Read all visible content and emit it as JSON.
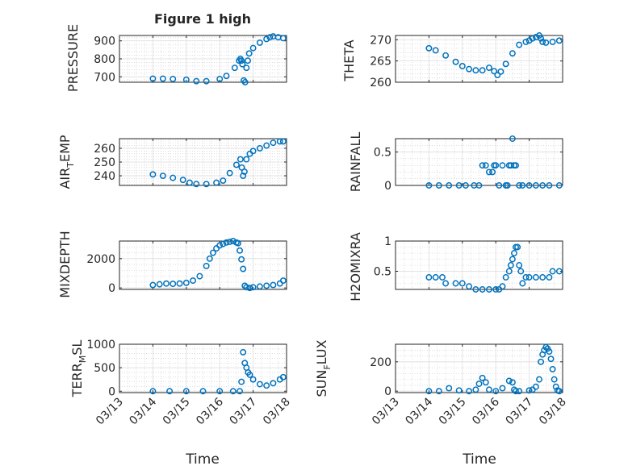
{
  "chart_data": [
    {
      "type": "scatter",
      "title": "Figure 1 high",
      "ylabel": "PRESSURE",
      "ylim": [
        670,
        930
      ],
      "yticks": [
        "700",
        "800",
        "900"
      ],
      "ytick_values": [
        700,
        800,
        900
      ],
      "x_day": [
        14.0,
        14.3,
        14.6,
        15.0,
        15.3,
        15.6,
        16.0,
        16.2,
        16.45,
        16.58,
        16.62,
        16.65,
        16.68,
        16.72,
        16.76,
        16.8,
        16.84,
        16.88,
        17.0,
        17.2,
        17.4,
        17.5,
        17.6,
        17.75,
        17.9
      ],
      "y": [
        690,
        690,
        688,
        684,
        676,
        676,
        688,
        705,
        750,
        790,
        800,
        790,
        770,
        680,
        670,
        750,
        790,
        830,
        860,
        890,
        910,
        920,
        925,
        920,
        915
      ]
    },
    {
      "type": "scatter",
      "title": "",
      "ylabel": "THETA",
      "ylim": [
        260,
        271
      ],
      "yticks": [
        "260",
        "265",
        "270"
      ],
      "ytick_values": [
        260,
        265,
        270
      ],
      "x_day": [
        14.0,
        14.2,
        14.5,
        14.8,
        15.0,
        15.2,
        15.4,
        15.6,
        15.8,
        15.95,
        16.05,
        16.15,
        16.3,
        16.5,
        16.7,
        16.9,
        17.0,
        17.1,
        17.2,
        17.3,
        17.35,
        17.4,
        17.5,
        17.7,
        17.9
      ],
      "y": [
        268,
        267.5,
        266.3,
        264.8,
        263.8,
        263.1,
        262.8,
        262.8,
        263.4,
        262.6,
        261.7,
        262.5,
        264.3,
        266.8,
        268.8,
        269.5,
        269.8,
        270.3,
        270.6,
        271,
        270.3,
        269.5,
        269.3,
        269.5,
        269.8
      ]
    },
    {
      "type": "scatter",
      "title": "",
      "ylabel": "AIR_TEMP",
      "ylim": [
        233,
        267
      ],
      "yticks": [
        "240",
        "250",
        "260"
      ],
      "ytick_values": [
        240,
        250,
        260
      ],
      "x_day": [
        14.0,
        14.3,
        14.6,
        14.9,
        15.1,
        15.3,
        15.6,
        15.9,
        16.1,
        16.3,
        16.5,
        16.62,
        16.66,
        16.7,
        16.74,
        16.8,
        16.9,
        17.0,
        17.2,
        17.4,
        17.6,
        17.8,
        17.9
      ],
      "y": [
        241,
        240,
        238.5,
        237,
        235,
        234,
        234,
        235,
        236.5,
        242,
        248,
        252,
        246,
        240,
        243,
        252,
        256,
        258,
        260,
        262,
        264,
        265,
        265
      ]
    },
    {
      "type": "scatter",
      "title": "",
      "ylabel": "RAINFALL",
      "ylim": [
        0,
        0.7
      ],
      "yticks": [
        "0",
        "0.5"
      ],
      "ytick_values": [
        0,
        0.5
      ],
      "x_day": [
        14.0,
        14.3,
        14.6,
        14.9,
        15.1,
        15.35,
        15.5,
        15.6,
        15.7,
        15.8,
        15.9,
        15.95,
        16.0,
        16.1,
        16.2,
        16.3,
        16.35,
        16.4,
        16.45,
        16.5,
        16.55,
        16.6,
        16.7,
        16.8,
        17.0,
        17.2,
        17.4,
        17.6,
        17.9
      ],
      "y": [
        0,
        0,
        0,
        0,
        0,
        0,
        0,
        0.3,
        0.3,
        0.2,
        0.2,
        0.3,
        0.3,
        0,
        0.3,
        0,
        0,
        0.3,
        0.3,
        0.7,
        0.3,
        0.3,
        0,
        0,
        0,
        0,
        0,
        0,
        0
      ]
    },
    {
      "type": "scatter",
      "title": "",
      "ylabel": "MIXDEPTH",
      "ylim": [
        -100,
        3200
      ],
      "yticks": [
        "0",
        "2000"
      ],
      "ytick_values": [
        0,
        2000
      ],
      "x_day": [
        14.0,
        14.2,
        14.4,
        14.6,
        14.8,
        15.0,
        15.2,
        15.4,
        15.6,
        15.7,
        15.8,
        15.9,
        16.0,
        16.1,
        16.2,
        16.3,
        16.4,
        16.5,
        16.55,
        16.6,
        16.65,
        16.7,
        16.75,
        16.8,
        16.9,
        17.0,
        17.2,
        17.4,
        17.6,
        17.8,
        17.9
      ],
      "y": [
        200,
        250,
        300,
        280,
        300,
        350,
        500,
        800,
        1500,
        2000,
        2400,
        2700,
        2900,
        3000,
        3100,
        3150,
        3200,
        3100,
        3050,
        2550,
        1950,
        1300,
        150,
        50,
        0,
        50,
        100,
        150,
        200,
        300,
        500
      ]
    },
    {
      "type": "scatter",
      "title": "",
      "ylabel": "H2OMIXRA",
      "ylim": [
        0.2,
        1.0
      ],
      "yticks": [
        "0.5",
        "1"
      ],
      "ytick_values": [
        0.5,
        1
      ],
      "x_day": [
        14.0,
        14.2,
        14.4,
        14.5,
        14.8,
        15.0,
        15.2,
        15.4,
        15.6,
        15.8,
        16.0,
        16.1,
        16.2,
        16.3,
        16.4,
        16.45,
        16.5,
        16.55,
        16.6,
        16.65,
        16.7,
        16.75,
        16.8,
        16.9,
        17.0,
        17.2,
        17.4,
        17.6,
        17.7,
        17.9
      ],
      "y": [
        0.4,
        0.4,
        0.4,
        0.3,
        0.3,
        0.3,
        0.25,
        0.2,
        0.2,
        0.2,
        0.2,
        0.2,
        0.25,
        0.4,
        0.5,
        0.6,
        0.7,
        0.8,
        0.9,
        0.9,
        0.6,
        0.5,
        0.3,
        0.4,
        0.4,
        0.4,
        0.4,
        0.4,
        0.5,
        0.5
      ]
    },
    {
      "type": "scatter",
      "title": "",
      "ylabel": "TERR_MSL",
      "ylim": [
        -30,
        1000
      ],
      "yticks": [
        "0",
        "500",
        "1000"
      ],
      "ytick_values": [
        0,
        500,
        1000
      ],
      "x_day": [
        14.0,
        14.5,
        15.0,
        15.5,
        16.0,
        16.4,
        16.6,
        16.65,
        16.7,
        16.75,
        16.8,
        16.85,
        16.9,
        17.0,
        17.2,
        17.4,
        17.6,
        17.8,
        17.9
      ],
      "y": [
        0,
        0,
        0,
        0,
        0,
        0,
        0,
        200,
        830,
        600,
        500,
        400,
        350,
        250,
        150,
        120,
        170,
        250,
        300
      ]
    },
    {
      "type": "scatter",
      "title": "",
      "ylabel": "SUN_FLUX",
      "ylim": [
        -10,
        320
      ],
      "yticks": [
        "0",
        "200"
      ],
      "ytick_values": [
        0,
        200
      ],
      "x_day": [
        14.0,
        14.3,
        14.6,
        14.9,
        15.2,
        15.4,
        15.5,
        15.6,
        15.7,
        15.8,
        16.0,
        16.2,
        16.4,
        16.5,
        16.55,
        16.6,
        16.7,
        17.0,
        17.1,
        17.2,
        17.3,
        17.35,
        17.4,
        17.45,
        17.5,
        17.55,
        17.6,
        17.65,
        17.7,
        17.75,
        17.8,
        17.85,
        17.9
      ],
      "y": [
        0,
        0,
        20,
        5,
        0,
        10,
        50,
        90,
        60,
        10,
        0,
        20,
        70,
        60,
        10,
        0,
        0,
        5,
        10,
        30,
        80,
        200,
        250,
        280,
        300,
        290,
        270,
        220,
        150,
        80,
        30,
        5,
        0
      ]
    }
  ],
  "x_axis": {
    "label": "Time",
    "range_day": [
      13,
      18
    ],
    "ticks": [
      {
        "day": 13,
        "label": "03/13"
      },
      {
        "day": 14,
        "label": "03/14"
      },
      {
        "day": 15,
        "label": "03/15"
      },
      {
        "day": 16,
        "label": "03/16"
      },
      {
        "day": 17,
        "label": "03/17"
      },
      {
        "day": 18,
        "label": "03/18"
      }
    ]
  },
  "styles": {
    "marker_color": "#0072BD",
    "grid_color": "#c8c8c8",
    "axis_color": "#262626",
    "background": "#ffffff"
  }
}
